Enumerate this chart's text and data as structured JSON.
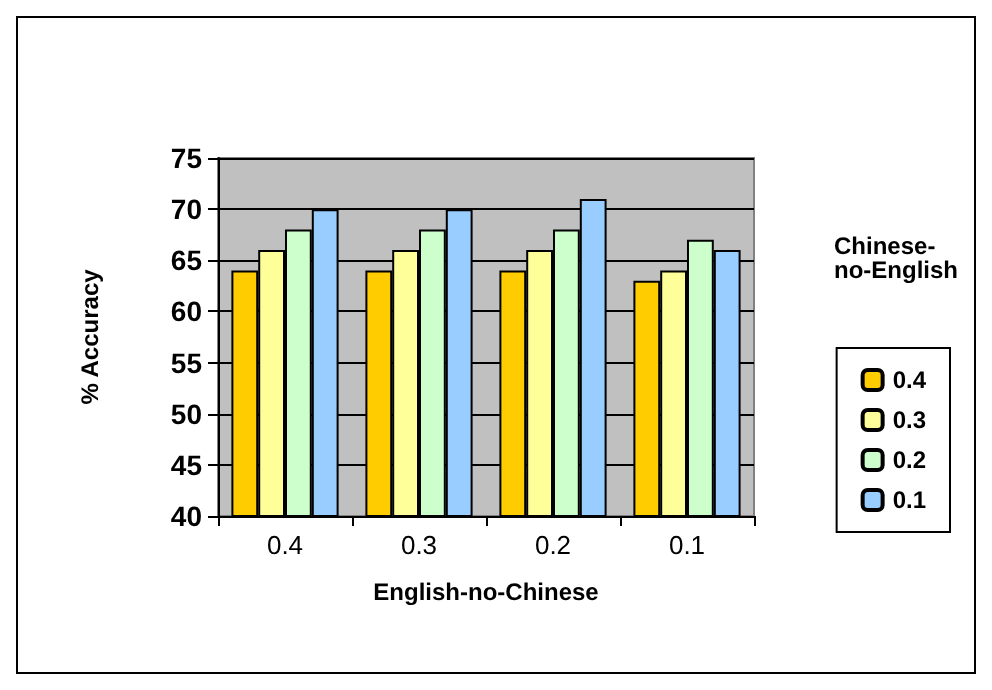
{
  "chart_data": {
    "type": "bar",
    "xlabel": "English-no-Chinese",
    "ylabel": "% Accuracy",
    "legend_title": "Chinese-no-English",
    "categories": [
      "0.4",
      "0.3",
      "0.2",
      "0.1"
    ],
    "series": [
      {
        "name": "0.4",
        "color": "#ffcc00",
        "values": [
          64,
          64,
          64,
          63
        ]
      },
      {
        "name": "0.3",
        "color": "#ffff99",
        "values": [
          66,
          66,
          66,
          64
        ]
      },
      {
        "name": "0.2",
        "color": "#ccffcc",
        "values": [
          68,
          68,
          68,
          67
        ]
      },
      {
        "name": "0.1",
        "color": "#99ccff",
        "values": [
          70,
          70,
          71,
          66
        ]
      }
    ],
    "ylim": [
      40,
      75
    ],
    "yticks": [
      40,
      45,
      50,
      55,
      60,
      65,
      70,
      75
    ],
    "grid": "y",
    "legend": "right"
  }
}
